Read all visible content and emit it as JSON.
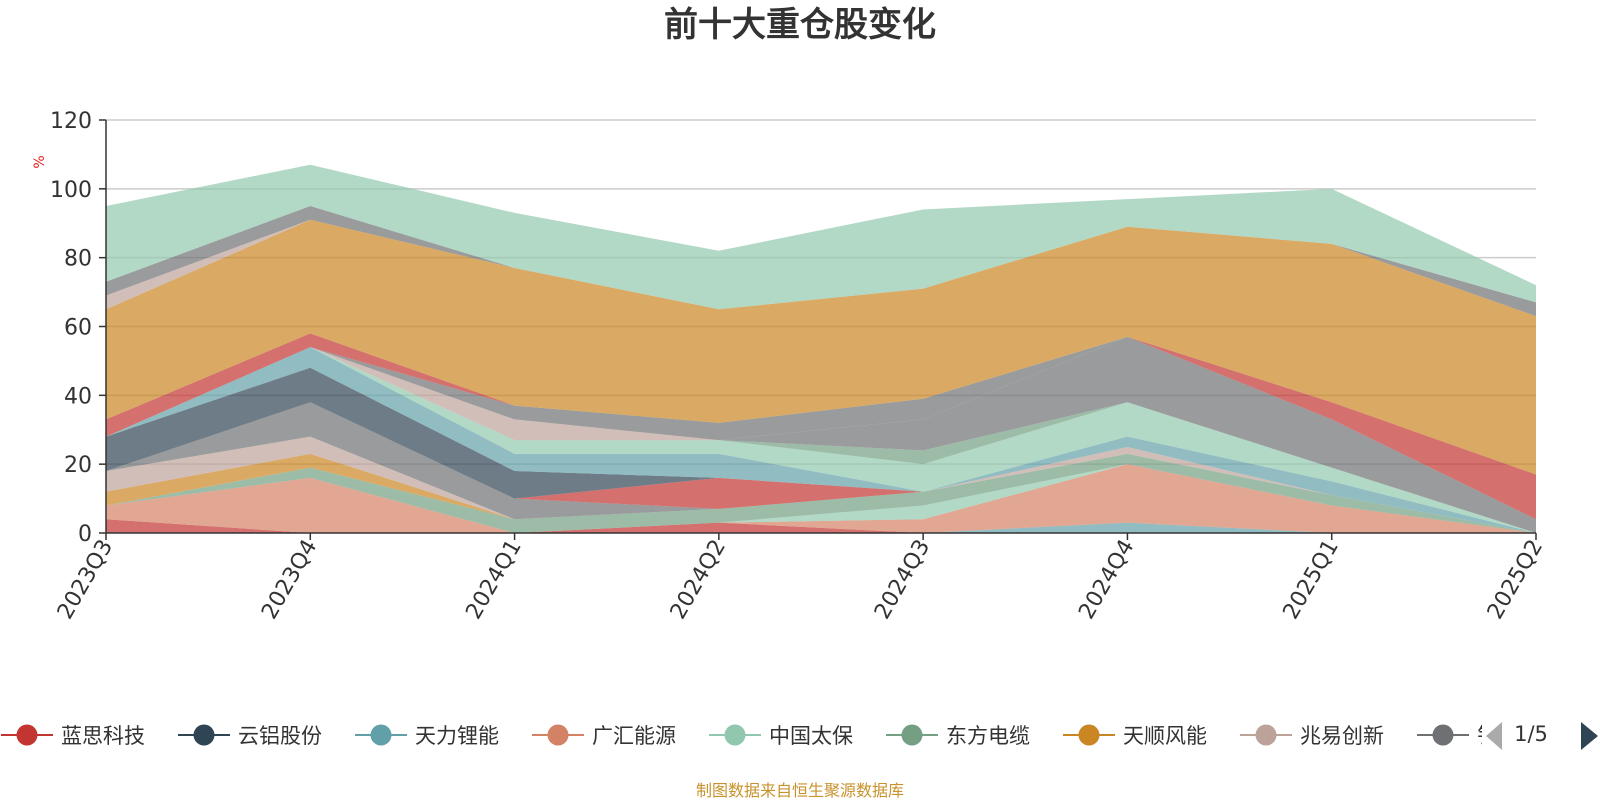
{
  "chart_data": {
    "type": "area",
    "title": "前十大重仓股变化",
    "ylabel": "%",
    "ylim": [
      0,
      120
    ],
    "yticks": [
      0,
      20,
      40,
      60,
      80,
      100,
      120
    ],
    "grid": true,
    "categories": [
      "2023Q3",
      "2023Q4",
      "2024Q1",
      "2024Q2",
      "2024Q3",
      "2024Q4",
      "2025Q1",
      "2025Q2"
    ],
    "series": [
      {
        "name": "蓝思科技",
        "color": "#c23531",
        "values": [
          4,
          0,
          0,
          3,
          0,
          0,
          0,
          0
        ]
      },
      {
        "name": "云铝股份",
        "color": "#2f4554",
        "values": [
          0,
          0,
          0,
          0,
          0,
          0,
          0,
          0
        ]
      },
      {
        "name": "天力锂能",
        "color": "#61a0a8",
        "values": [
          0,
          0,
          0,
          0,
          0,
          3,
          0,
          0
        ]
      },
      {
        "name": "广汇能源",
        "color": "#d48265",
        "values": [
          4,
          16,
          0,
          0,
          4,
          17,
          8,
          0
        ]
      },
      {
        "name": "中国太保",
        "color": "#91c7ae",
        "values": [
          0,
          0,
          0,
          0,
          4,
          0,
          0,
          0
        ]
      },
      {
        "name": "东方电缆",
        "color": "#749f83",
        "values": [
          0,
          3,
          4,
          4,
          4,
          3,
          3,
          0
        ]
      },
      {
        "name": "天顺风能",
        "color": "#ca8622",
        "values": [
          4,
          4,
          0,
          0,
          0,
          0,
          0,
          0
        ]
      },
      {
        "name": "兆易创新",
        "color": "#bda29a",
        "values": [
          6,
          5,
          0,
          0,
          0,
          2,
          0,
          0
        ]
      },
      {
        "name": "其他",
        "color": "#6e7074",
        "values": [
          0,
          10,
          6,
          0,
          0,
          0,
          0,
          0
        ]
      },
      {
        "name": "蓝思科技",
        "color": "#c23531",
        "values": [
          0,
          0,
          0,
          9,
          0,
          0,
          0,
          0
        ]
      },
      {
        "name": "云铝股份",
        "color": "#2f4554",
        "values": [
          10,
          10,
          8,
          0,
          0,
          0,
          0,
          0
        ]
      },
      {
        "name": "天力锂能",
        "color": "#61a0a8",
        "values": [
          0,
          6,
          5,
          7,
          0,
          3,
          4,
          0
        ]
      },
      {
        "name": "中国太保",
        "color": "#91c7ae",
        "values": [
          0,
          0,
          4,
          4,
          8,
          10,
          4,
          0
        ]
      },
      {
        "name": "东方电缆",
        "color": "#749f83",
        "values": [
          0,
          0,
          0,
          0,
          4,
          0,
          0,
          0
        ]
      },
      {
        "name": "兆易创新",
        "color": "#bda29a",
        "values": [
          0,
          0,
          6,
          0,
          0,
          0,
          0,
          0
        ]
      },
      {
        "name": "其他",
        "color": "#6e7074",
        "values": [
          0,
          0,
          0,
          0,
          9,
          19,
          14,
          4
        ]
      },
      {
        "name": "天力锂能",
        "color": "#61a0a8",
        "values": [
          0,
          0,
          0,
          0,
          0,
          0,
          0,
          0
        ]
      },
      {
        "name": "其他",
        "color": "#6e7074",
        "values": [
          0,
          0,
          4,
          5,
          6,
          0,
          0,
          0
        ]
      },
      {
        "name": "蓝思科技",
        "color": "#c23531",
        "values": [
          5,
          4,
          0,
          0,
          0,
          0,
          5,
          13
        ]
      },
      {
        "name": "天顺风能",
        "color": "#ca8622",
        "values": [
          32,
          33,
          40,
          33,
          32,
          32,
          46,
          46
        ]
      },
      {
        "name": "兆易创新",
        "color": "#bda29a",
        "values": [
          4,
          0,
          0,
          0,
          0,
          0,
          0,
          0
        ]
      },
      {
        "name": "其他",
        "color": "#6e7074",
        "values": [
          4,
          4,
          0,
          0,
          0,
          0,
          0,
          4
        ]
      },
      {
        "name": "中国太保",
        "color": "#91c7ae",
        "values": [
          22,
          12,
          16,
          17,
          23,
          8,
          16,
          5
        ]
      }
    ]
  },
  "legend": {
    "items": [
      {
        "name": "蓝思科技",
        "color": "#c23531"
      },
      {
        "name": "云铝股份",
        "color": "#2f4554"
      },
      {
        "name": "天力锂能",
        "color": "#61a0a8"
      },
      {
        "name": "广汇能源",
        "color": "#d48265"
      },
      {
        "name": "中国太保",
        "color": "#91c7ae"
      },
      {
        "name": "东方电缆",
        "color": "#749f83"
      },
      {
        "name": "天顺风能",
        "color": "#ca8622"
      },
      {
        "name": "兆易创新",
        "color": "#bda29a"
      },
      {
        "name": "钅",
        "color": "#6e7074"
      }
    ],
    "page": "1/5",
    "prev_color": "#aaaaaa",
    "next_color": "#2f4554"
  },
  "source": {
    "text": "制图数据来自恒生聚源数据库",
    "color": "#c8922c"
  },
  "colors": {
    "axis": "#333333",
    "grid": "#cccccc",
    "unit": "#e02020"
  }
}
